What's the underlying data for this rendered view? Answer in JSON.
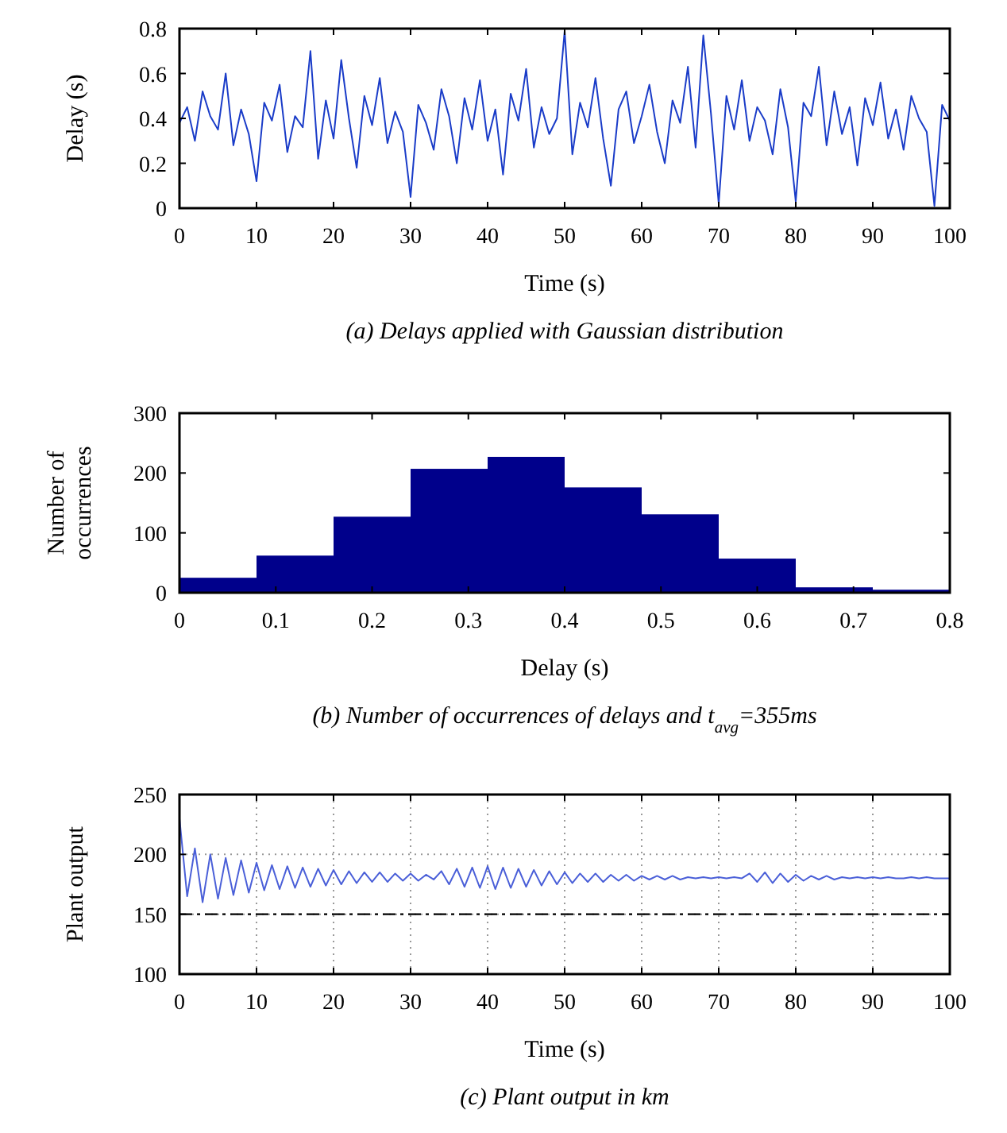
{
  "chart_data": [
    {
      "type": "line",
      "title": "(a) Delays applied with Gaussian distribution",
      "xlabel": "Time (s)",
      "ylabel": "Delay (s)",
      "xlim": [
        0,
        100
      ],
      "xticks": [
        0,
        10,
        20,
        30,
        40,
        50,
        60,
        70,
        80,
        90,
        100
      ],
      "ylim": [
        0,
        0.8
      ],
      "yticks": [
        0,
        0.2,
        0.4,
        0.6,
        0.8
      ],
      "grid": false,
      "series": [
        {
          "color": "#1a3cc8",
          "x": [
            0,
            1,
            2,
            3,
            4,
            5,
            6,
            7,
            8,
            9,
            10,
            11,
            12,
            13,
            14,
            15,
            16,
            17,
            18,
            19,
            20,
            21,
            22,
            23,
            24,
            25,
            26,
            27,
            28,
            29,
            30,
            31,
            32,
            33,
            34,
            35,
            36,
            37,
            38,
            39,
            40,
            41,
            42,
            43,
            44,
            45,
            46,
            47,
            48,
            49,
            50,
            51,
            52,
            53,
            54,
            55,
            56,
            57,
            58,
            59,
            60,
            61,
            62,
            63,
            64,
            65,
            66,
            67,
            68,
            69,
            70,
            71,
            72,
            73,
            74,
            75,
            76,
            77,
            78,
            79,
            80,
            81,
            82,
            83,
            84,
            85,
            86,
            87,
            88,
            89,
            90,
            91,
            92,
            93,
            94,
            95,
            96,
            97,
            98,
            99,
            100
          ],
          "values": [
            0.38,
            0.45,
            0.3,
            0.52,
            0.41,
            0.35,
            0.6,
            0.28,
            0.44,
            0.33,
            0.12,
            0.47,
            0.39,
            0.55,
            0.25,
            0.41,
            0.36,
            0.7,
            0.22,
            0.48,
            0.31,
            0.66,
            0.4,
            0.18,
            0.5,
            0.37,
            0.58,
            0.29,
            0.43,
            0.34,
            0.05,
            0.46,
            0.38,
            0.26,
            0.53,
            0.41,
            0.2,
            0.49,
            0.35,
            0.57,
            0.3,
            0.44,
            0.15,
            0.51,
            0.39,
            0.62,
            0.27,
            0.45,
            0.33,
            0.4,
            0.79,
            0.24,
            0.47,
            0.36,
            0.58,
            0.31,
            0.1,
            0.44,
            0.52,
            0.29,
            0.41,
            0.55,
            0.34,
            0.2,
            0.48,
            0.38,
            0.63,
            0.27,
            0.77,
            0.42,
            0.02,
            0.5,
            0.35,
            0.57,
            0.3,
            0.45,
            0.39,
            0.24,
            0.53,
            0.36,
            0.03,
            0.47,
            0.41,
            0.63,
            0.28,
            0.52,
            0.33,
            0.45,
            0.19,
            0.49,
            0.37,
            0.56,
            0.31,
            0.44,
            0.26,
            0.5,
            0.4,
            0.34,
            0.01,
            0.46,
            0.39
          ]
        }
      ]
    },
    {
      "type": "histogram",
      "title": "(b) Number of occurrences of delays and t$_{avg}$=355ms",
      "xlabel": "Delay (s)",
      "ylabel": "Number of occurrences",
      "xlim": [
        0,
        0.8
      ],
      "xticks": [
        0,
        0.1,
        0.2,
        0.3,
        0.4,
        0.5,
        0.6,
        0.7,
        0.8
      ],
      "ylim": [
        0,
        300
      ],
      "yticks": [
        0,
        100,
        200,
        300
      ],
      "grid": false,
      "color": "#00008b",
      "bins": [
        0,
        0.08,
        0.16,
        0.24,
        0.32,
        0.4,
        0.48,
        0.56,
        0.64,
        0.72,
        0.8
      ],
      "values": [
        25,
        62,
        127,
        207,
        227,
        176,
        131,
        57,
        9,
        5
      ]
    },
    {
      "type": "line",
      "title": "(c) Plant output in km",
      "xlabel": "Time (s)",
      "ylabel": "Plant output",
      "xlim": [
        0,
        100
      ],
      "xticks": [
        0,
        10,
        20,
        30,
        40,
        50,
        60,
        70,
        80,
        90,
        100
      ],
      "ylim": [
        100,
        250
      ],
      "yticks": [
        100,
        150,
        200,
        250
      ],
      "grid": true,
      "ref_lines": [
        {
          "axis": "y",
          "value": 150,
          "color": "#000000",
          "line_style": "dashed"
        }
      ],
      "series": [
        {
          "color": "#4a5fd8",
          "x": [
            0,
            1,
            2,
            3,
            4,
            5,
            6,
            7,
            8,
            9,
            10,
            11,
            12,
            13,
            14,
            15,
            16,
            17,
            18,
            19,
            20,
            21,
            22,
            23,
            24,
            25,
            26,
            27,
            28,
            29,
            30,
            31,
            32,
            33,
            34,
            35,
            36,
            37,
            38,
            39,
            40,
            41,
            42,
            43,
            44,
            45,
            46,
            47,
            48,
            49,
            50,
            51,
            52,
            53,
            54,
            55,
            56,
            57,
            58,
            59,
            60,
            61,
            62,
            63,
            64,
            65,
            66,
            67,
            68,
            69,
            70,
            71,
            72,
            73,
            74,
            75,
            76,
            77,
            78,
            79,
            80,
            81,
            82,
            83,
            84,
            85,
            86,
            87,
            88,
            89,
            90,
            91,
            92,
            93,
            94,
            95,
            96,
            97,
            98,
            99,
            100
          ],
          "values": [
            230,
            165,
            205,
            160,
            200,
            163,
            197,
            166,
            195,
            168,
            193,
            170,
            191,
            171,
            190,
            172,
            189,
            173,
            188,
            174,
            187,
            175,
            186,
            176,
            185,
            177,
            185,
            177,
            184,
            178,
            184,
            178,
            183,
            179,
            186,
            175,
            188,
            173,
            189,
            172,
            190,
            171,
            189,
            172,
            188,
            173,
            187,
            174,
            186,
            175,
            185,
            176,
            184,
            177,
            184,
            177,
            183,
            178,
            183,
            178,
            182,
            179,
            182,
            179,
            182,
            179,
            181,
            180,
            181,
            180,
            181,
            180,
            181,
            180,
            184,
            177,
            185,
            176,
            184,
            177,
            183,
            178,
            182,
            179,
            182,
            179,
            181,
            180,
            181,
            180,
            181,
            180,
            181,
            180,
            180,
            181,
            180,
            181,
            180,
            180,
            180
          ]
        }
      ]
    }
  ]
}
